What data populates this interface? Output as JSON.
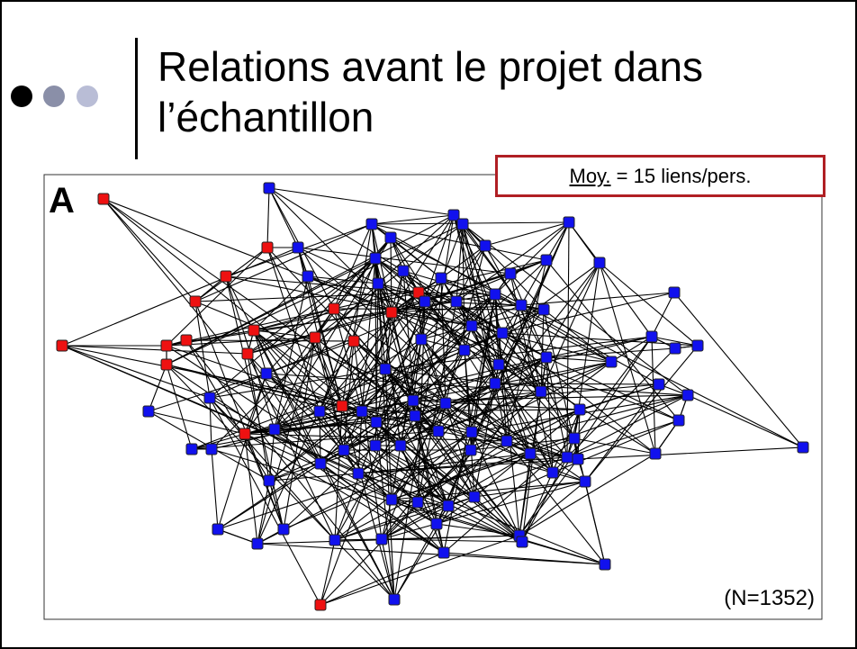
{
  "title_lines": [
    "Relations avant le projet dans",
    "l’échantillon"
  ],
  "panel_label": "A",
  "annotation": {
    "underlined": "Moy.",
    "rest": " = 15 liens/pers."
  },
  "footnote": "(N=1352)"
}
